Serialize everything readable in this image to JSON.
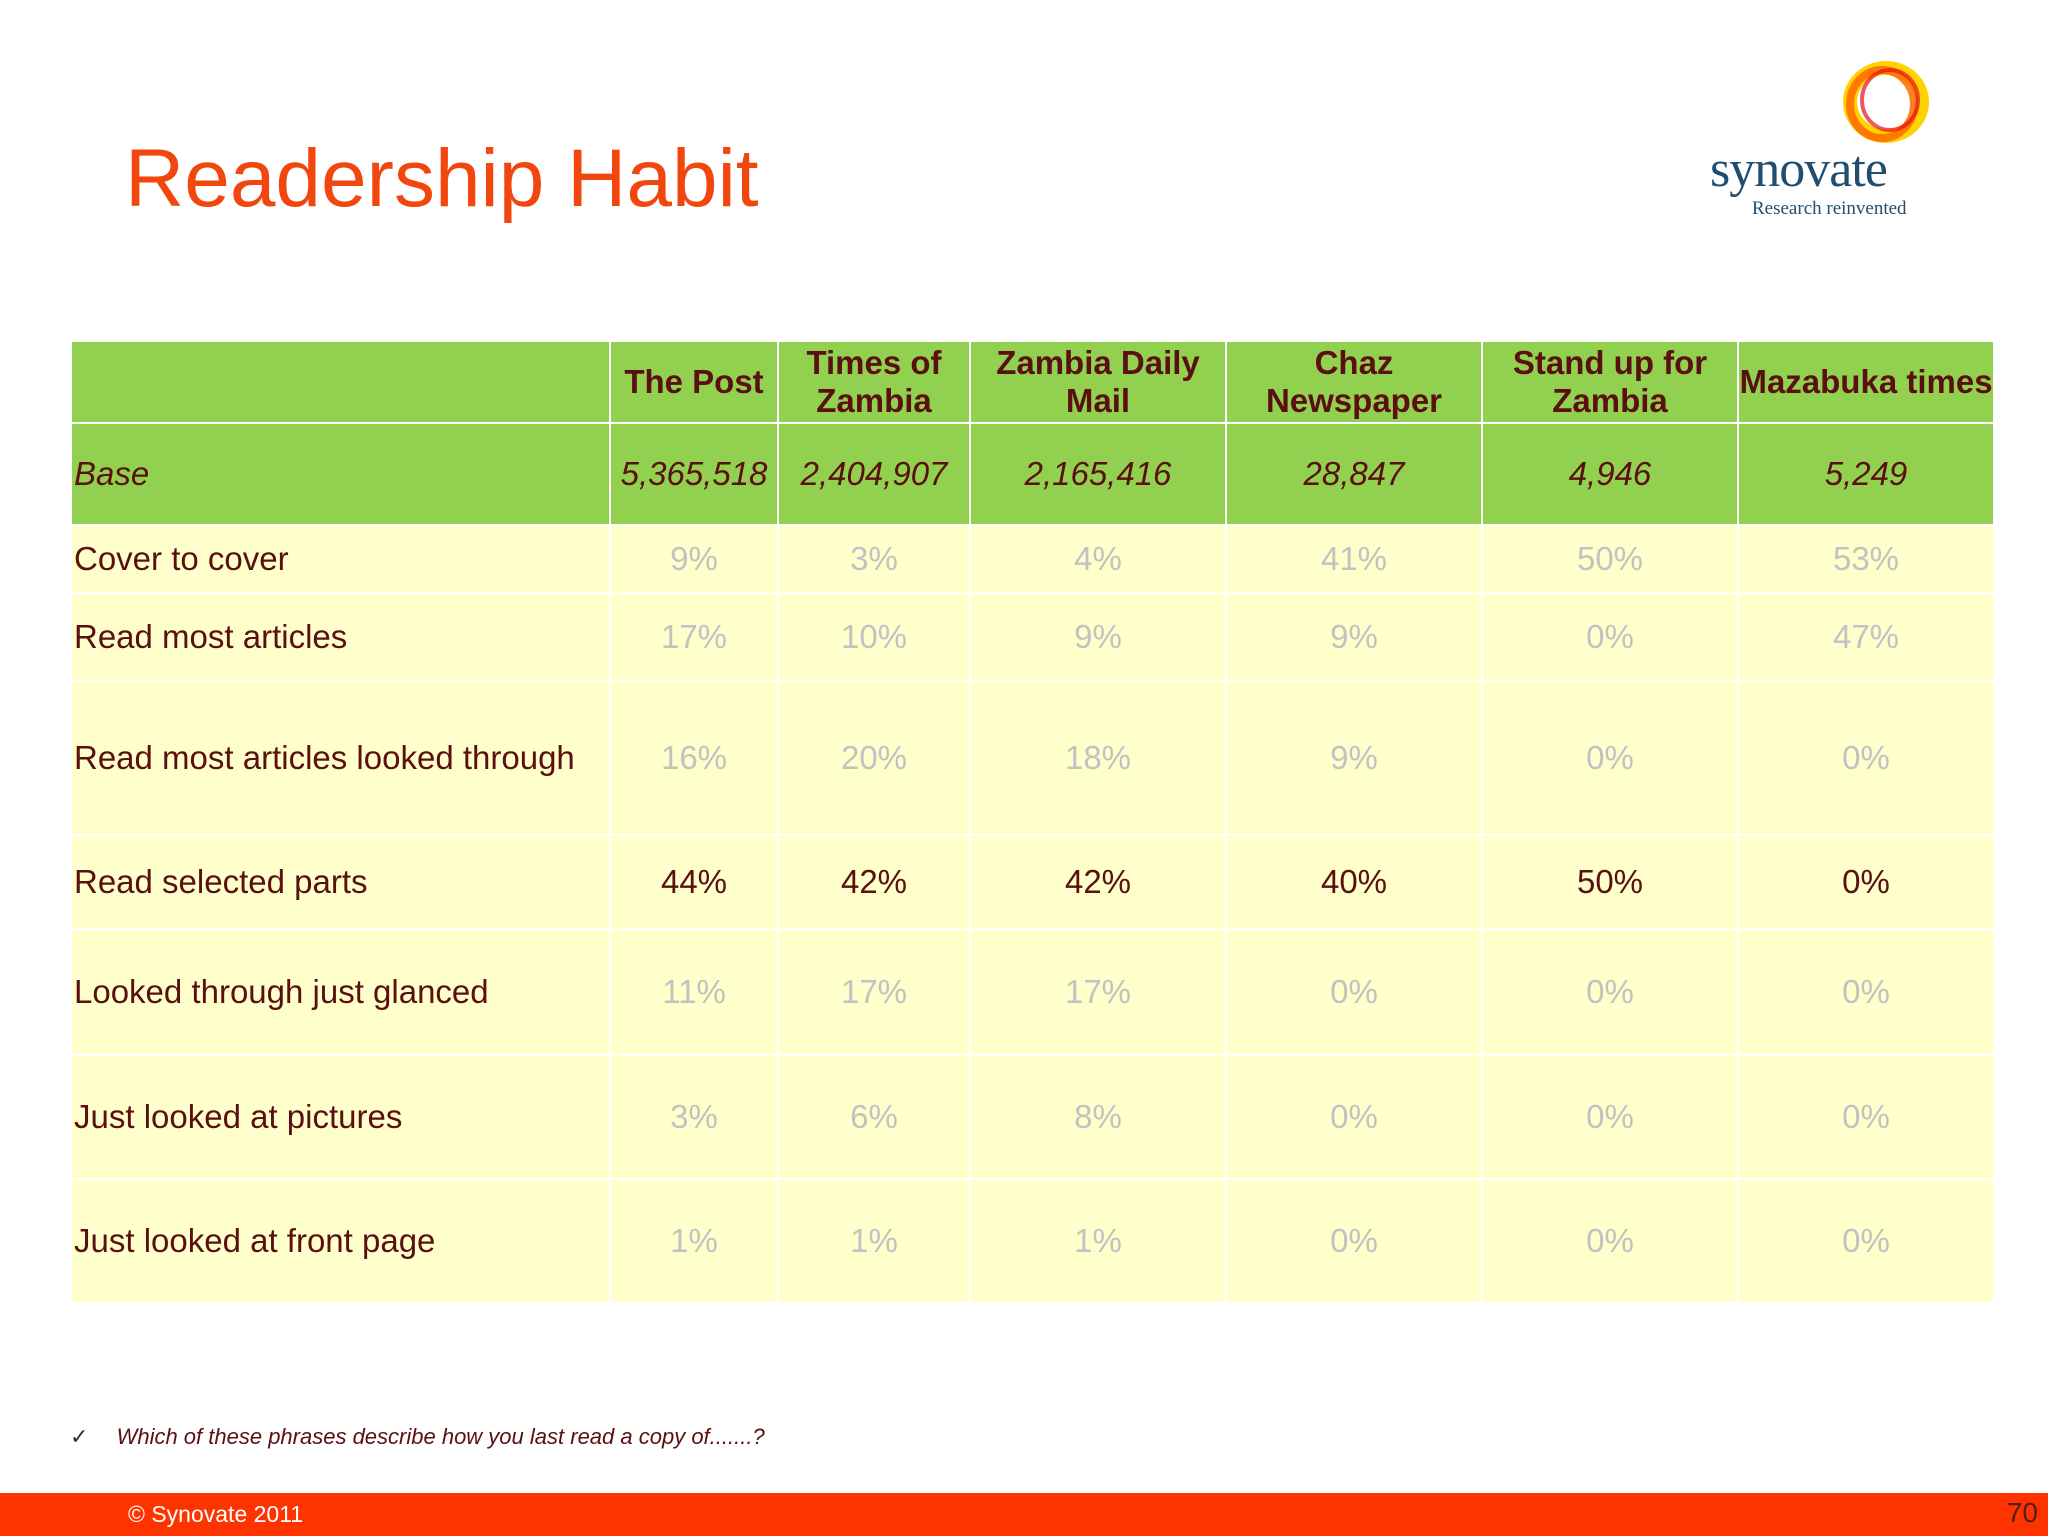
{
  "title": "Readership Habit",
  "logo": {
    "wordmark": "synovate",
    "tagline": "Research reinvented"
  },
  "table": {
    "columns": [
      "The Post",
      "Times of Zambia",
      "Zambia Daily Mail",
      "Chaz Newspaper",
      "Stand up for Zambia",
      "Mazabuka times"
    ],
    "base": {
      "label": "Base",
      "values": [
        "5,365,518",
        "2,404,907",
        "2,165,416",
        "28,847",
        "4,946",
        "5,249"
      ]
    },
    "rows": [
      {
        "label": "Cover to cover",
        "values": [
          "9%",
          "3%",
          "4%",
          "41%",
          "50%",
          "53%"
        ]
      },
      {
        "label": "Read most articles",
        "values": [
          "17%",
          "10%",
          "9%",
          "9%",
          "0%",
          "47%"
        ]
      },
      {
        "label": "Read most articles looked through",
        "values": [
          "16%",
          "20%",
          "18%",
          "9%",
          "0%",
          "0%"
        ]
      },
      {
        "label": "Read selected parts",
        "values": [
          "44%",
          "42%",
          "42%",
          "40%",
          "50%",
          "0%"
        ]
      },
      {
        "label": "Looked through just glanced",
        "values": [
          "11%",
          "17%",
          "17%",
          "0%",
          "0%",
          "0%"
        ]
      },
      {
        "label": "Just looked at pictures",
        "values": [
          "3%",
          "6%",
          "8%",
          "0%",
          "0%",
          "0%"
        ]
      },
      {
        "label": "Just looked at front page",
        "values": [
          "1%",
          "1%",
          "1%",
          "0%",
          "0%",
          "0%"
        ]
      }
    ]
  },
  "note": "Which of these phrases describe how you last read a copy of.......?",
  "note_mark": "✓",
  "footer": {
    "copyright": "© Synovate 2011",
    "page": "70"
  },
  "colors": {
    "title": "#f2460f",
    "header_green": "#92d050",
    "row_yellow": "#ffffcc",
    "text_dark": "#5a0f10",
    "muted": "#c2c2c2",
    "footer": "#ff3300"
  }
}
